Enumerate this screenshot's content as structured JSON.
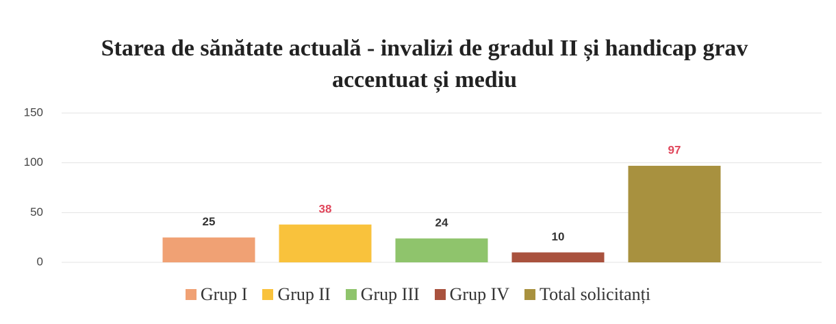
{
  "chart_data": {
    "type": "bar",
    "title": "Starea de sănătate actuală - invalizi de gradul II și handicap grav accentuat și mediu",
    "series": [
      {
        "name": "Grup I",
        "color": "#f0a174",
        "label_color": "#333333",
        "values": [
          25
        ]
      },
      {
        "name": "Grup II",
        "color": "#f9c23c",
        "label_color": "#e0455a",
        "values": [
          38
        ]
      },
      {
        "name": "Grup III",
        "color": "#8fc46c",
        "label_color": "#333333",
        "values": [
          24
        ]
      },
      {
        "name": "Grup IV",
        "color": "#a9523e",
        "label_color": "#333333",
        "values": [
          10
        ]
      },
      {
        "name": "Total solicitanți",
        "color": "#a8913f",
        "label_color": "#e0455a",
        "values": [
          97
        ]
      }
    ],
    "ylim": [
      0,
      150
    ],
    "yticks": [
      0,
      50,
      100,
      150
    ],
    "grid": true,
    "legend": "bottom"
  }
}
